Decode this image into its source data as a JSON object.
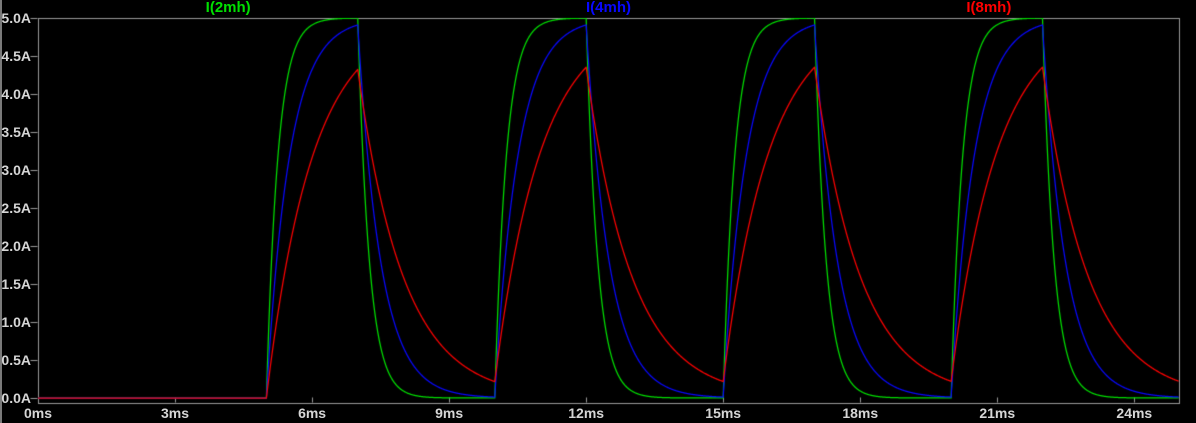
{
  "window": {
    "background": "#000000",
    "left_edge_color": "#7a7a7a"
  },
  "axes": {
    "border_color": "#9a9a9a",
    "tick_color": "#9a9a9a",
    "tick_text_color": "#d6d6d6",
    "y_tick_labels": [
      "5.0A",
      "4.5A",
      "4.0A",
      "3.5A",
      "3.0A",
      "2.5A",
      "2.0A",
      "1.5A",
      "1.0A",
      "0.5A",
      "0.0A"
    ],
    "y_tick_values_A": [
      5.0,
      4.5,
      4.0,
      3.5,
      3.0,
      2.5,
      2.0,
      1.5,
      1.0,
      0.5,
      0.0
    ],
    "x_tick_labels": [
      "0ms",
      "3ms",
      "6ms",
      "9ms",
      "12ms",
      "15ms",
      "18ms",
      "21ms",
      "24ms"
    ],
    "x_tick_values_ms": [
      0,
      3,
      6,
      9,
      12,
      15,
      18,
      21,
      24
    ]
  },
  "chart_data": {
    "type": "line",
    "title": "",
    "grid": false,
    "legend_position": "top",
    "x_range_ms": [
      0,
      25
    ],
    "y_range_A": [
      0,
      5
    ],
    "x_ticks_ms": [
      0,
      3,
      6,
      9,
      12,
      15,
      18,
      21,
      24
    ],
    "y_ticks_A": [
      0,
      0.5,
      1,
      1.5,
      2,
      2.5,
      3,
      3.5,
      4,
      4.5,
      5
    ],
    "excitation_pulse": {
      "amplitude_A": 5,
      "delay_ms": 5,
      "on_time_ms": 2,
      "period_ms": 5,
      "num_pulses": 4
    },
    "series": [
      {
        "name": "I(2mh)",
        "color": "#00e000",
        "time_constant_ms": 0.25,
        "peak_A": 5.0,
        "trough_A": 0.0,
        "samples_t_ms": [
          0,
          1,
          2,
          3,
          4,
          5,
          6,
          7,
          8,
          9,
          10,
          11,
          12,
          13,
          14,
          15,
          16,
          17,
          18,
          19,
          20,
          21,
          22,
          23,
          24,
          25
        ],
        "samples_A": [
          0,
          0,
          0,
          0,
          0,
          0,
          4.908,
          4.998,
          0.092,
          0.002,
          0,
          4.908,
          4.998,
          0.092,
          0.002,
          0,
          4.908,
          4.998,
          0.092,
          0.002,
          0,
          4.908,
          4.998,
          0.092,
          0.002,
          0
        ]
      },
      {
        "name": "I(4mh)",
        "color": "#0808ff",
        "time_constant_ms": 0.5,
        "peak_A": 4.91,
        "trough_A": 0.01,
        "samples_t_ms": [
          0,
          1,
          2,
          3,
          4,
          5,
          6,
          7,
          8,
          9,
          10,
          11,
          12,
          13,
          14,
          15,
          16,
          17,
          18,
          19,
          20,
          21,
          22,
          23,
          24,
          25
        ],
        "samples_A": [
          0,
          0,
          0,
          0,
          0,
          0,
          4.323,
          4.908,
          0.664,
          0.09,
          0.012,
          4.325,
          4.909,
          0.664,
          0.09,
          0.012,
          4.325,
          4.909,
          0.664,
          0.09,
          0.012,
          4.325,
          4.909,
          0.664,
          0.09,
          0.012
        ]
      },
      {
        "name": "I(8mh)",
        "color": "#ff0000",
        "time_constant_ms": 1.0,
        "peak_A": 4.35,
        "trough_A": 0.22,
        "samples_t_ms": [
          0,
          1,
          2,
          3,
          4,
          5,
          6,
          7,
          8,
          9,
          10,
          11,
          12,
          13,
          14,
          15,
          16,
          17,
          18,
          19,
          20,
          21,
          22,
          23,
          24,
          25
        ],
        "samples_A": [
          0,
          0,
          0,
          0,
          0,
          0,
          3.161,
          4.323,
          1.59,
          0.585,
          0.215,
          3.24,
          4.352,
          1.601,
          0.589,
          0.217,
          3.24,
          4.353,
          1.601,
          0.589,
          0.217,
          3.24,
          4.353,
          1.601,
          0.589,
          0.217
        ]
      }
    ]
  }
}
